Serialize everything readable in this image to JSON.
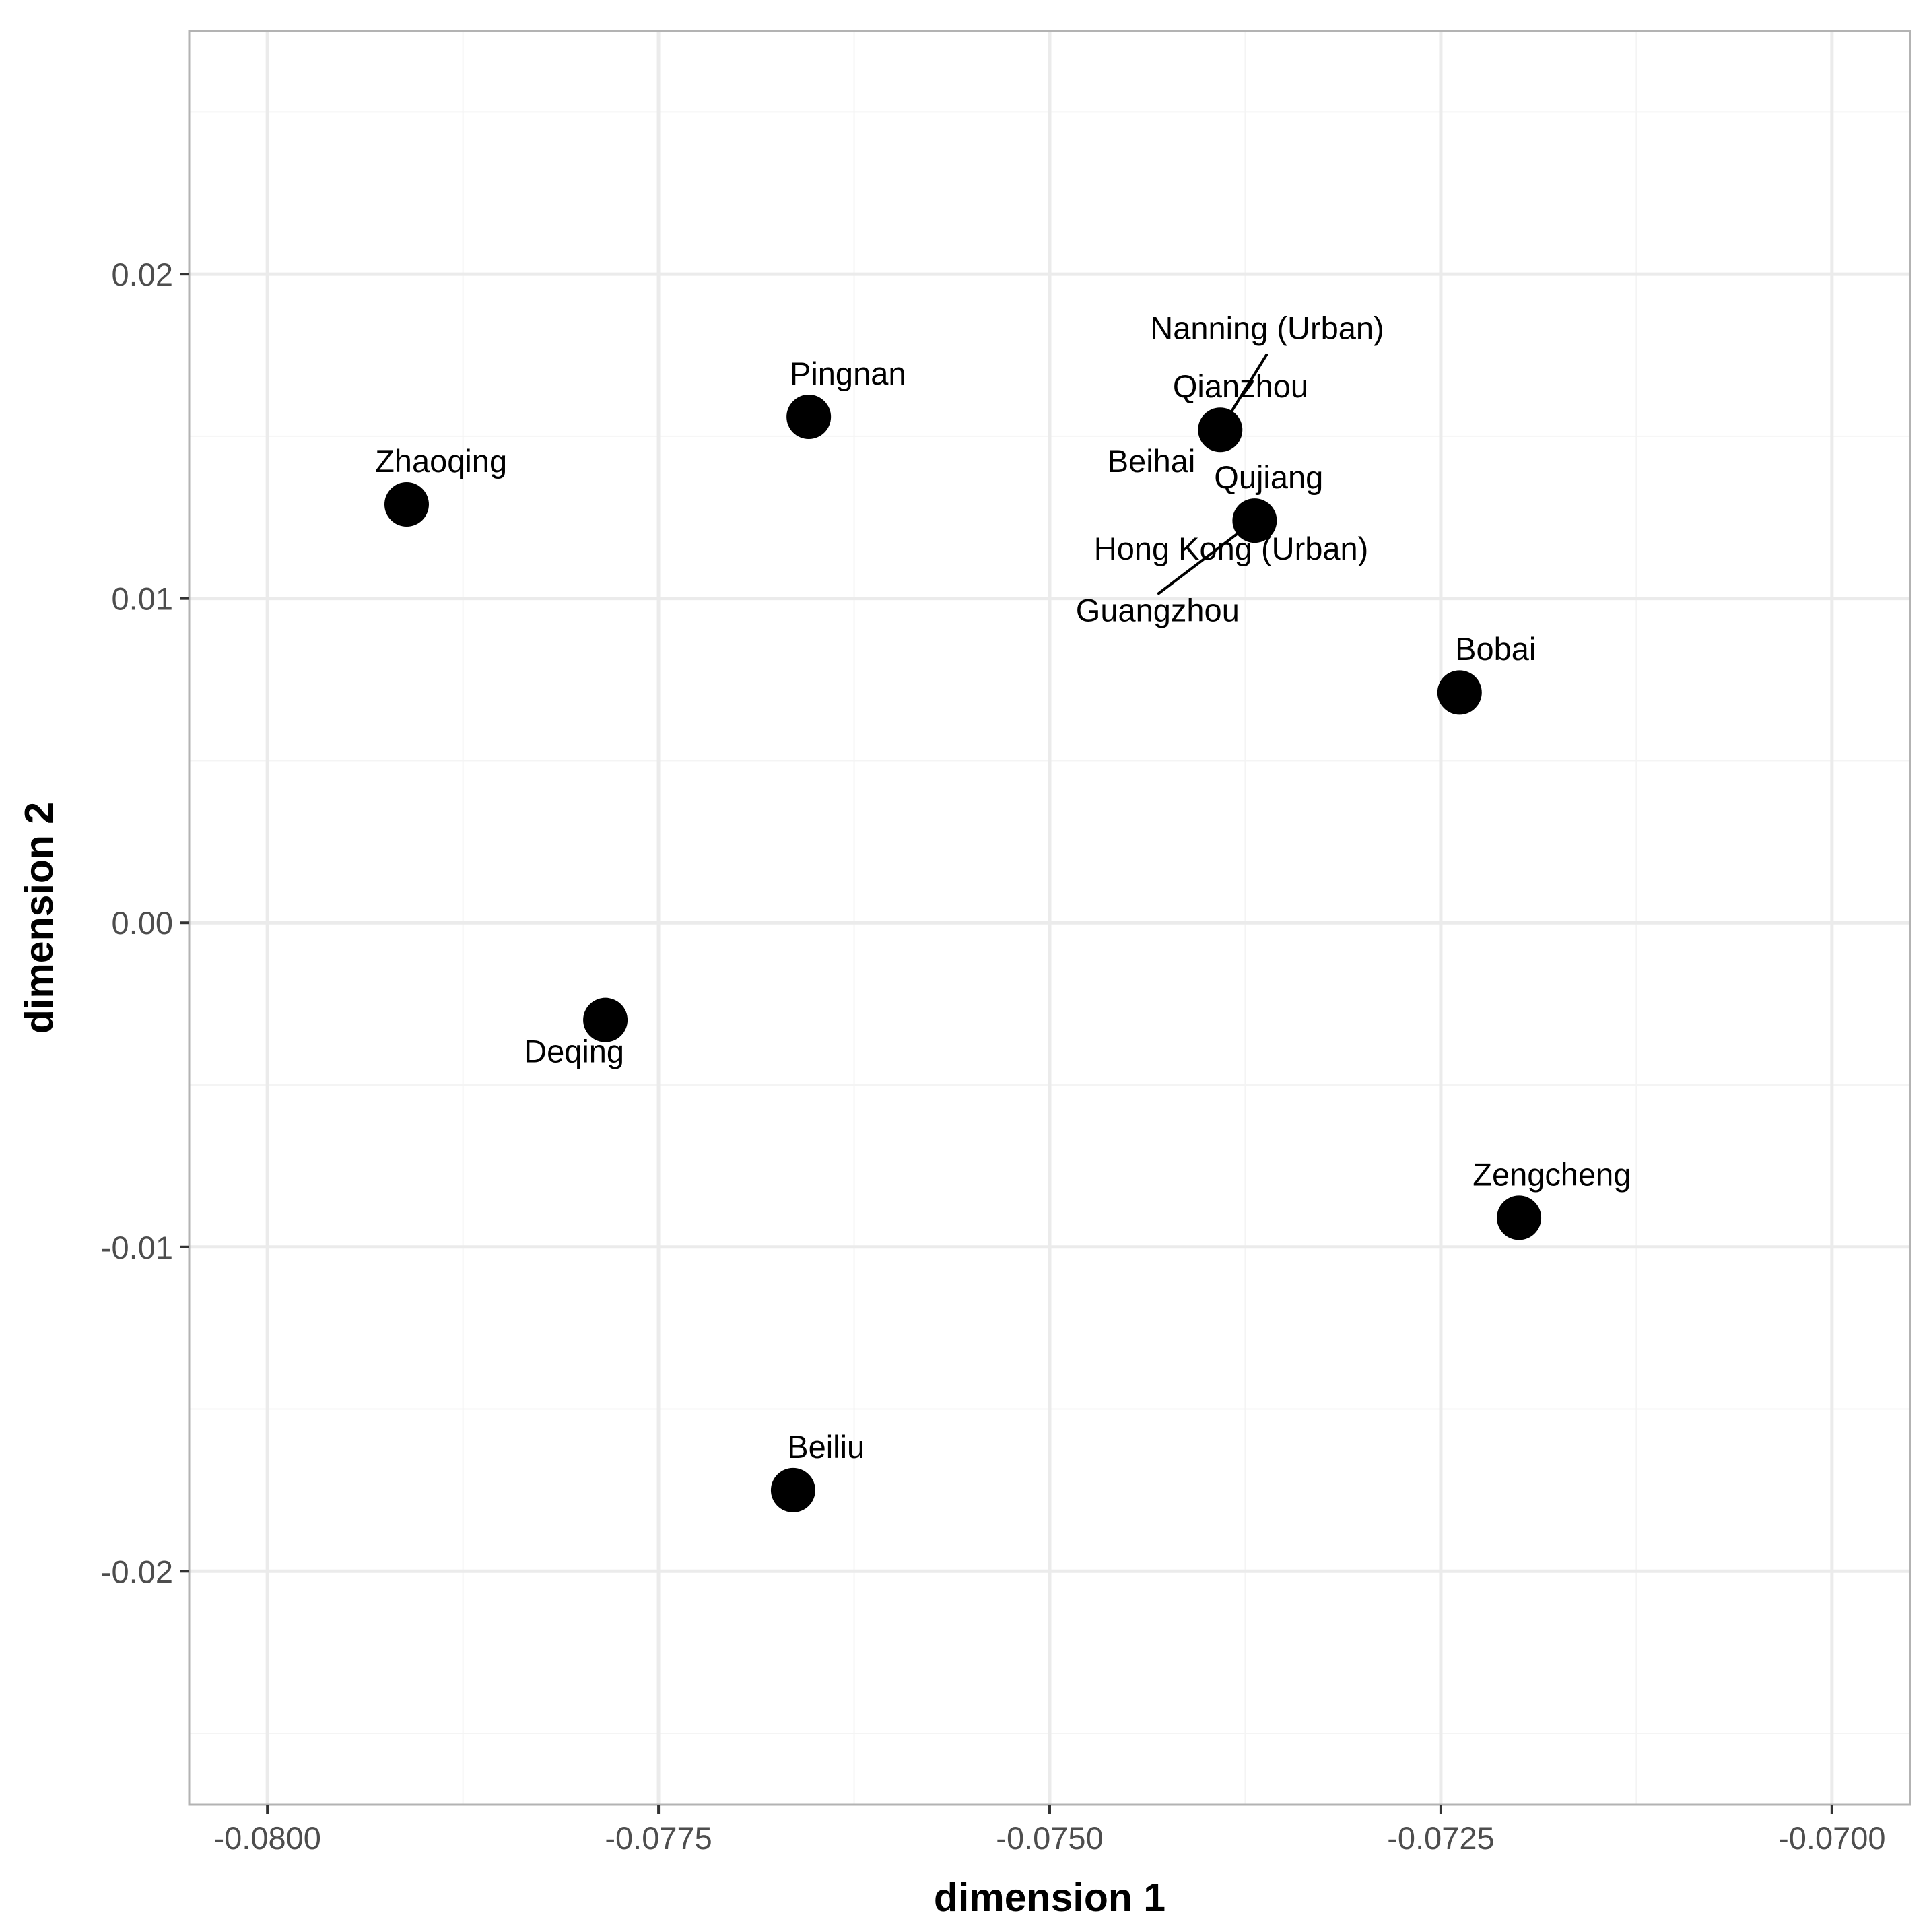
{
  "chart_data": {
    "type": "scatter",
    "title": "",
    "xlabel": "dimension 1",
    "ylabel": "dimension 2",
    "xlim": [
      -0.0805,
      -0.0695
    ],
    "ylim": [
      -0.0272,
      0.0275
    ],
    "x_major_ticks": [
      -0.08,
      -0.0775,
      -0.075,
      -0.0725,
      -0.07
    ],
    "x_tick_labels": [
      "-0.0800",
      "-0.0775",
      "-0.0750",
      "-0.0725",
      "-0.0700"
    ],
    "x_minor_ticks": [
      -0.07875,
      -0.07625,
      -0.07375,
      -0.07125
    ],
    "y_major_ticks": [
      0.02,
      0.01,
      0.0,
      -0.01,
      -0.02
    ],
    "y_tick_labels": [
      "0.02",
      "0.01",
      "0.00",
      "-0.01",
      "-0.02"
    ],
    "y_minor_ticks": [
      0.025,
      0.015,
      0.005,
      -0.005,
      -0.015,
      -0.025
    ],
    "grid": true,
    "colors": {
      "panel_border": "#b3b3b3",
      "grid_major": "#ebebeb",
      "grid_minor": "#f4f4f4",
      "point": "#000000",
      "tick_text": "#4d4d4d",
      "tick_mark": "#333333"
    },
    "points": [
      {
        "x": -0.07911,
        "y": 0.0129,
        "labels": [
          "Zhaoqing"
        ]
      },
      {
        "x": -0.07654,
        "y": 0.0156,
        "labels": [
          "Pingnan"
        ]
      },
      {
        "x": -0.07391,
        "y": 0.0152,
        "labels": [
          "Nanning (Urban)",
          "Qianzhou",
          "Beihai"
        ]
      },
      {
        "x": -0.07369,
        "y": 0.0124,
        "labels": [
          "Qujiang",
          "Hong Kong (Urban)",
          "Guangzhou"
        ]
      },
      {
        "x": -0.07238,
        "y": 0.0071,
        "labels": [
          "Bobai"
        ]
      },
      {
        "x": -0.07784,
        "y": -0.003,
        "labels": [
          "Deqing"
        ]
      },
      {
        "x": -0.072,
        "y": -0.0091,
        "labels": [
          "Zengcheng"
        ]
      },
      {
        "x": -0.07664,
        "y": -0.0175,
        "labels": [
          "Beiliu"
        ]
      }
    ],
    "labels": [
      {
        "text": "Zhaoqing",
        "x": -0.07889,
        "y": 0.0139
      },
      {
        "text": "Pingnan",
        "x": -0.07629,
        "y": 0.0166
      },
      {
        "text": "Nanning (Urban)",
        "x": -0.07361,
        "y": 0.018,
        "leader_to": [
          -0.07391,
          0.0152
        ]
      },
      {
        "text": "Qianzhou",
        "x": -0.07378,
        "y": 0.0162
      },
      {
        "text": "Beihai",
        "x": -0.07435,
        "y": 0.0139
      },
      {
        "text": "Qujiang",
        "x": -0.0736,
        "y": 0.0134
      },
      {
        "text": "Hong Kong (Urban)",
        "x": -0.07384,
        "y": 0.0112
      },
      {
        "text": "Guangzhou",
        "x": -0.07431,
        "y": 0.0093,
        "leader_to": [
          -0.07369,
          0.0124
        ]
      },
      {
        "text": "Bobai",
        "x": -0.07215,
        "y": 0.0081
      },
      {
        "text": "Deqing",
        "x": -0.07804,
        "y": -0.0043
      },
      {
        "text": "Zengcheng",
        "x": -0.07179,
        "y": -0.0081
      },
      {
        "text": "Beiliu",
        "x": -0.07643,
        "y": -0.0165
      }
    ]
  }
}
